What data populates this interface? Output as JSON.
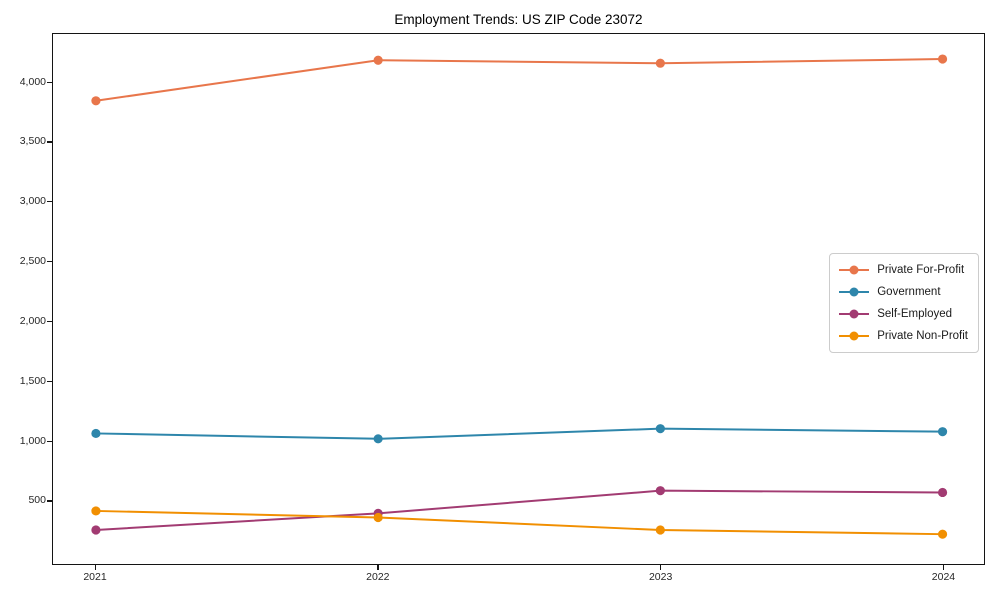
{
  "chart_data": {
    "type": "line",
    "title": "Employment Trends: US ZIP Code 23072",
    "xlabel": "",
    "ylabel": "",
    "x": [
      "2021",
      "2022",
      "2023",
      "2024"
    ],
    "series": [
      {
        "name": "Private For-Profit",
        "color": "#E8764B",
        "values": [
          3850,
          4190,
          4165,
          4200
        ]
      },
      {
        "name": "Government",
        "color": "#2E86AB",
        "values": [
          1060,
          1015,
          1100,
          1075
        ]
      },
      {
        "name": "Self-Employed",
        "color": "#A23B72",
        "values": [
          250,
          390,
          580,
          565
        ]
      },
      {
        "name": "Private Non-Profit",
        "color": "#F18F01",
        "values": [
          410,
          355,
          250,
          215
        ]
      }
    ],
    "y_ticks": [
      {
        "value": 500,
        "label": "500"
      },
      {
        "value": 1000,
        "label": "1,000"
      },
      {
        "value": 1500,
        "label": "1,500"
      },
      {
        "value": 2000,
        "label": "2,000"
      },
      {
        "value": 2500,
        "label": "2,500"
      },
      {
        "value": 3000,
        "label": "3,000"
      },
      {
        "value": 3500,
        "label": "3,500"
      },
      {
        "value": 4000,
        "label": "4,000"
      }
    ],
    "ylim": [
      -35,
      4410
    ],
    "grid": false,
    "legend_position": "right-center"
  }
}
